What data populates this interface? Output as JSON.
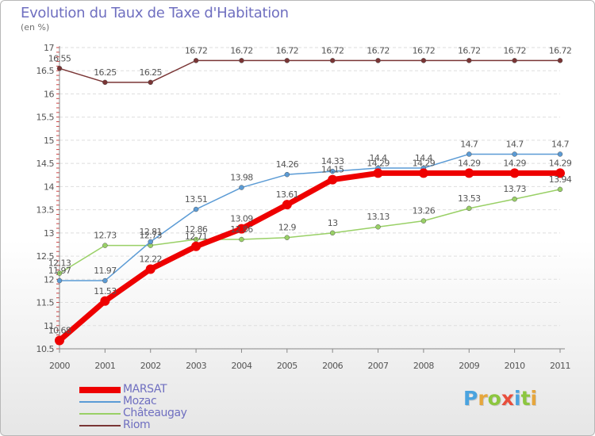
{
  "header": {
    "title": "Evolution du Taux de Taxe d'Habitation",
    "subtitle": "(en %)"
  },
  "logo": {
    "text": "Proxiti",
    "colors": [
      "#4aa3df",
      "#e6a63c",
      "#8cc63f",
      "#e84e3c",
      "#4aa3df",
      "#8cc63f",
      "#e6a63c"
    ]
  },
  "chart_data": {
    "type": "line",
    "title": "Evolution du Taux de Taxe d'Habitation",
    "ylabel": "(en %)",
    "xlabel": "",
    "x": [
      "2000",
      "2001",
      "2002",
      "2003",
      "2004",
      "2005",
      "2006",
      "2007",
      "2008",
      "2009",
      "2010",
      "2011"
    ],
    "ylim": [
      10.5,
      17
    ],
    "y_ticks": [
      "10.5",
      "11",
      "11.5",
      "12",
      "12.5",
      "13",
      "13.5",
      "14",
      "14.5",
      "15",
      "15.5",
      "16",
      "16.5",
      "17"
    ],
    "grid": "horizontal",
    "legend_position": "bottom-left",
    "series": [
      {
        "name": "MARSAT",
        "color": "#ee0000",
        "values": [
          10.68,
          11.53,
          12.22,
          12.71,
          13.09,
          13.61,
          14.15,
          14.29,
          14.29,
          14.29,
          14.29,
          14.29
        ],
        "labels": [
          "10.68",
          "11.53",
          "12.22",
          "12.71",
          "13.09",
          "13.61",
          "14.15",
          "14.29",
          "14.29",
          "14.29",
          "14.29",
          "14.29"
        ]
      },
      {
        "name": "Mozac",
        "color": "#5b9bd5",
        "values": [
          11.97,
          11.97,
          12.81,
          13.51,
          13.98,
          14.26,
          14.33,
          14.4,
          14.4,
          14.7,
          14.7,
          14.7
        ],
        "labels": [
          "11.97",
          "11.97",
          "12.81",
          "13.51",
          "13.98",
          "14.26",
          "14.33",
          "14.4",
          "14.4",
          "14.7",
          "14.7",
          "14.7"
        ]
      },
      {
        "name": "Châteaugay",
        "color": "#99d066",
        "values": [
          12.13,
          12.73,
          12.73,
          12.86,
          12.86,
          12.9,
          13,
          13.13,
          13.26,
          13.53,
          13.73,
          13.94
        ],
        "labels": [
          "12.13",
          "12.73",
          "12.73",
          "12.86",
          "12.86",
          "12.9",
          "13",
          "13.13",
          "13.26",
          "13.53",
          "13.73",
          "13.94"
        ]
      },
      {
        "name": "Riom",
        "color": "#7a3535",
        "values": [
          16.55,
          16.25,
          16.25,
          16.72,
          16.72,
          16.72,
          16.72,
          16.72,
          16.72,
          16.72,
          16.72,
          16.72
        ],
        "labels": [
          "16.55",
          "16.25",
          "16.25",
          "16.72",
          "16.72",
          "16.72",
          "16.72",
          "16.72",
          "16.72",
          "16.72",
          "16.72",
          "16.72"
        ]
      }
    ]
  }
}
